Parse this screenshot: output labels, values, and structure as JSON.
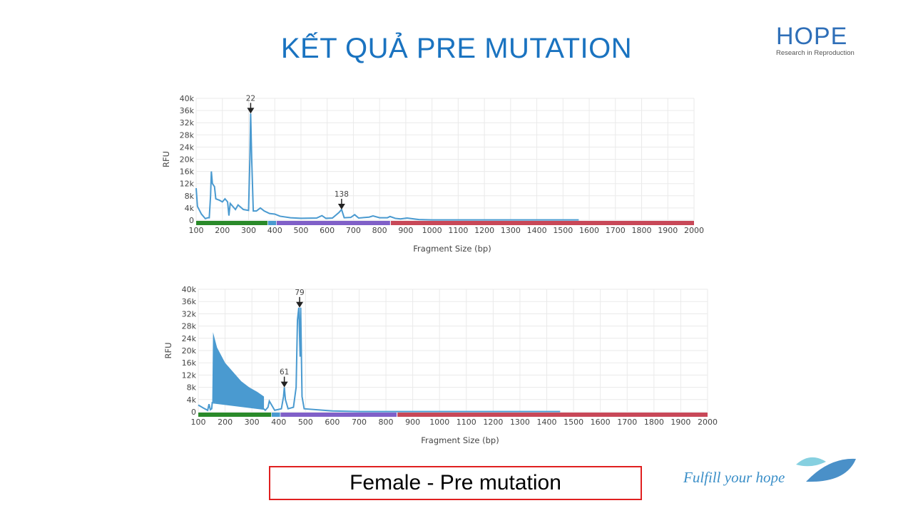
{
  "slide": {
    "title": "KẾT QUẢ PRE MUTATION",
    "caption": "Female - Pre mutation",
    "tagline": "Fulfill your hope",
    "logo": {
      "word": "HOPE",
      "subtitle": "Research in Reproduction"
    }
  },
  "chart_data": [
    {
      "type": "line",
      "xlabel": "Fragment Size (bp)",
      "ylabel": "RFU",
      "xlim": [
        100,
        2000
      ],
      "ylim": [
        0,
        40000
      ],
      "xticks": [
        100,
        200,
        300,
        400,
        500,
        600,
        700,
        800,
        900,
        1000,
        1100,
        1200,
        1300,
        1400,
        1500,
        1600,
        1700,
        1800,
        1900,
        2000
      ],
      "yticks": [
        0,
        4000,
        8000,
        12000,
        16000,
        20000,
        24000,
        28000,
        32000,
        36000,
        40000
      ],
      "ytick_labels": [
        "0",
        "4k",
        "8k",
        "12k",
        "16k",
        "20k",
        "24k",
        "28k",
        "32k",
        "36k",
        "40k"
      ],
      "grid": true,
      "line_color": "#4a9ad0",
      "size_bands": [
        {
          "from": 100,
          "to": 372,
          "color": "#2a8a2a"
        },
        {
          "from": 374,
          "to": 405,
          "color": "#4a9ad0"
        },
        {
          "from": 407,
          "to": 840,
          "color": "#8060c8"
        },
        {
          "from": 843,
          "to": 2000,
          "color": "#c84858"
        }
      ],
      "annotations": [
        {
          "label": "22",
          "x": 308,
          "y": 35000
        },
        {
          "label": "138",
          "x": 655,
          "y": 3500
        }
      ],
      "x": [
        100,
        105,
        120,
        135,
        145,
        150,
        155,
        158,
        162,
        170,
        175,
        190,
        200,
        210,
        220,
        225,
        230,
        250,
        260,
        280,
        300,
        305,
        308,
        312,
        318,
        330,
        345,
        360,
        380,
        400,
        420,
        460,
        500,
        560,
        580,
        595,
        620,
        645,
        655,
        665,
        690,
        705,
        720,
        760,
        775,
        800,
        830,
        840,
        860,
        880,
        905,
        950,
        1000,
        1560
      ],
      "y": [
        10500,
        4500,
        2000,
        500,
        800,
        800,
        8000,
        16000,
        12000,
        11000,
        7000,
        6500,
        6000,
        7000,
        6000,
        1500,
        5500,
        3500,
        5000,
        3500,
        3200,
        20000,
        35000,
        20000,
        3000,
        3000,
        4000,
        3000,
        2200,
        2000,
        1300,
        800,
        600,
        700,
        1500,
        600,
        700,
        2500,
        3500,
        800,
        900,
        1800,
        700,
        1000,
        1400,
        800,
        800,
        1200,
        600,
        400,
        700,
        200,
        100,
        100
      ]
    },
    {
      "type": "line",
      "xlabel": "Fragment Size (bp)",
      "ylabel": "RFU",
      "xlim": [
        100,
        2000
      ],
      "ylim": [
        0,
        40000
      ],
      "xticks": [
        100,
        200,
        300,
        400,
        500,
        600,
        700,
        800,
        900,
        1000,
        1100,
        1200,
        1300,
        1400,
        1500,
        1600,
        1700,
        1800,
        1900,
        2000
      ],
      "yticks": [
        0,
        4000,
        8000,
        12000,
        16000,
        20000,
        24000,
        28000,
        32000,
        36000,
        40000
      ],
      "ytick_labels": [
        "0",
        "4k",
        "8k",
        "12k",
        "16k",
        "20k",
        "24k",
        "28k",
        "32k",
        "36k",
        "40k"
      ],
      "grid": true,
      "line_color": "#4a9ad0",
      "size_bands": [
        {
          "from": 100,
          "to": 372,
          "color": "#2a8a2a"
        },
        {
          "from": 374,
          "to": 405,
          "color": "#4a9ad0"
        },
        {
          "from": 407,
          "to": 840,
          "color": "#8060c8"
        },
        {
          "from": 843,
          "to": 2000,
          "color": "#c84858"
        }
      ],
      "annotations": [
        {
          "label": "61",
          "x": 421,
          "y": 8000
        },
        {
          "label": "79",
          "x": 478,
          "y": 34000
        }
      ],
      "band": {
        "x": [
          152,
          155,
          170,
          200,
          230,
          260,
          290,
          320,
          345
        ],
        "upper": [
          3000,
          26000,
          21000,
          16000,
          13000,
          10000,
          8000,
          6500,
          5000
        ],
        "lower": [
          3000,
          3200,
          3000,
          2600,
          2200,
          1800,
          1500,
          1200,
          900
        ]
      },
      "x": [
        100,
        120,
        135,
        140,
        145,
        150,
        152,
        345,
        350,
        360,
        365,
        375,
        385,
        410,
        418,
        421,
        425,
        435,
        455,
        465,
        470,
        475,
        480,
        482,
        487,
        495,
        600,
        700,
        1450
      ],
      "y": [
        2200,
        1200,
        500,
        2500,
        700,
        1000,
        3000,
        900,
        500,
        1500,
        3500,
        2000,
        500,
        1000,
        5000,
        8000,
        4000,
        1000,
        1500,
        8000,
        30000,
        34000,
        18000,
        34000,
        5000,
        1000,
        300,
        100,
        100
      ]
    }
  ]
}
